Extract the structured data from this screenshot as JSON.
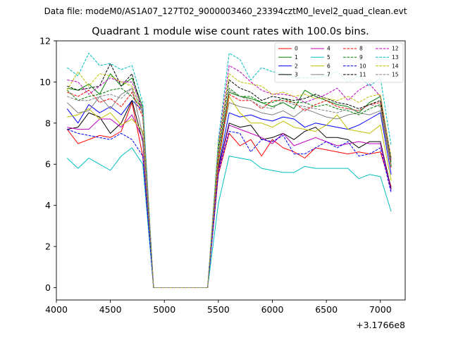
{
  "figure": {
    "suptitle": "Data file: modeM0/AS1A07_127T02_9000003460_23394cztM0_level2_quad_clean.evt"
  },
  "chart_data": {
    "type": "line",
    "title": "Quadrant 1 module wise count rates with 100.0s bins.",
    "xlabel": "",
    "ylabel": "",
    "x_offset": 317660000,
    "x_offset_label": "+3.1766e8",
    "xlim": [
      4000,
      7230
    ],
    "ylim": [
      -0.6,
      12.0
    ],
    "x_ticks": [
      4000,
      4500,
      5000,
      5500,
      6000,
      6500,
      7000
    ],
    "x_tick_labels": [
      "4000",
      "4500",
      "5000",
      "5500",
      "6000",
      "6500",
      "7000"
    ],
    "y_ticks": [
      0,
      2,
      4,
      6,
      8,
      10,
      12
    ],
    "y_tick_labels": [
      "0",
      "2",
      "4",
      "6",
      "8",
      "10",
      "12"
    ],
    "grid": false,
    "legend_position": "top-right",
    "legend_columns": 4,
    "x": [
      4100,
      4200,
      4300,
      4400,
      4500,
      4600,
      4700,
      4800,
      4900,
      5000,
      5100,
      5200,
      5300,
      5400,
      5500,
      5600,
      5700,
      5800,
      5900,
      6000,
      6100,
      6200,
      6300,
      6400,
      6500,
      6600,
      6700,
      6800,
      6900,
      7000,
      7100
    ],
    "series": [
      {
        "name": "0",
        "color": "#ff0000",
        "dash": "solid",
        "values": [
          7.7,
          7.0,
          7.2,
          7.4,
          7.3,
          7.6,
          9.0,
          6.4,
          0,
          0,
          0,
          0,
          0,
          0,
          5.5,
          7.5,
          6.9,
          7.2,
          6.4,
          7.2,
          6.8,
          6.6,
          6.3,
          6.8,
          6.7,
          6.6,
          6.5,
          6.6,
          6.5,
          6.6,
          4.9
        ]
      },
      {
        "name": "1",
        "color": "#008000",
        "dash": "solid",
        "values": [
          9.7,
          9.6,
          9.9,
          9.4,
          10.4,
          9.8,
          10.2,
          8.8,
          0,
          0,
          0,
          0,
          0,
          0,
          6.3,
          9.5,
          9.3,
          9.2,
          9.0,
          8.8,
          9.0,
          8.7,
          9.6,
          9.3,
          9.1,
          8.9,
          8.8,
          8.5,
          9.0,
          9.3,
          6.1
        ]
      },
      {
        "name": "2",
        "color": "#0000ff",
        "dash": "solid",
        "values": [
          8.7,
          8.0,
          8.9,
          8.5,
          8.8,
          8.4,
          9.1,
          8.6,
          0,
          0,
          0,
          0,
          0,
          0,
          5.9,
          8.5,
          8.3,
          8.4,
          8.2,
          8.1,
          8.3,
          8.2,
          7.8,
          8.0,
          7.9,
          7.8,
          7.7,
          7.9,
          8.2,
          8.5,
          5.5
        ]
      },
      {
        "name": "3",
        "color": "#000000",
        "dash": "solid",
        "values": [
          7.7,
          7.8,
          8.5,
          8.3,
          7.5,
          8.0,
          9.1,
          7.1,
          0,
          0,
          0,
          0,
          0,
          0,
          5.8,
          8.0,
          7.8,
          7.9,
          7.2,
          7.3,
          7.5,
          7.2,
          7.6,
          7.8,
          7.3,
          7.3,
          7.2,
          6.8,
          7.1,
          7.1,
          4.8
        ]
      },
      {
        "name": "4",
        "color": "#bf00bf",
        "dash": "solid",
        "values": [
          7.8,
          7.7,
          7.7,
          8.2,
          8.2,
          7.8,
          8.4,
          7.2,
          0,
          0,
          0,
          0,
          0,
          0,
          5.7,
          7.9,
          7.7,
          7.5,
          7.3,
          7.0,
          7.5,
          6.9,
          7.1,
          7.3,
          7.1,
          6.9,
          7.0,
          7.1,
          7.0,
          7.0,
          4.7
        ]
      },
      {
        "name": "5",
        "color": "#00bfbf",
        "dash": "solid",
        "values": [
          6.3,
          5.8,
          6.3,
          6.0,
          5.7,
          6.4,
          6.8,
          6.0,
          0,
          0,
          0,
          0,
          0,
          0,
          4.1,
          6.4,
          6.3,
          6.2,
          5.8,
          5.7,
          5.6,
          5.6,
          5.9,
          5.8,
          5.8,
          5.8,
          5.8,
          5.3,
          5.5,
          5.4,
          3.7
        ]
      },
      {
        "name": "6",
        "color": "#bfbf00",
        "dash": "solid",
        "values": [
          8.3,
          8.4,
          8.7,
          8.2,
          8.5,
          7.9,
          8.2,
          7.6,
          0,
          0,
          0,
          0,
          0,
          0,
          6.0,
          9.3,
          8.5,
          8.0,
          8.0,
          7.8,
          8.1,
          7.8,
          7.7,
          7.6,
          7.9,
          8.4,
          7.7,
          7.6,
          7.5,
          7.9,
          5.2
        ]
      },
      {
        "name": "7",
        "color": "#808080",
        "dash": "solid",
        "values": [
          9.0,
          8.5,
          8.6,
          9.3,
          8.7,
          9.4,
          9.7,
          7.4,
          0,
          0,
          0,
          0,
          0,
          0,
          6.4,
          9.0,
          8.8,
          8.7,
          8.5,
          8.4,
          8.6,
          8.3,
          8.7,
          8.5,
          8.3,
          8.2,
          8.4,
          8.5,
          8.4,
          8.6,
          5.9
        ]
      },
      {
        "name": "8",
        "color": "#ff0000",
        "dash": "dashed",
        "values": [
          9.5,
          9.3,
          9.6,
          9.0,
          9.2,
          8.8,
          9.5,
          8.3,
          0,
          0,
          0,
          0,
          0,
          0,
          6.2,
          9.4,
          9.1,
          9.1,
          8.7,
          9.1,
          9.1,
          9.0,
          8.6,
          8.9,
          9.1,
          8.8,
          8.7,
          8.6,
          8.9,
          9.0,
          5.8
        ]
      },
      {
        "name": "9",
        "color": "#008000",
        "dash": "dashed",
        "values": [
          9.6,
          9.1,
          9.3,
          9.4,
          9.6,
          9.7,
          9.3,
          8.7,
          0,
          0,
          0,
          0,
          0,
          0,
          6.6,
          9.7,
          9.3,
          9.3,
          9.0,
          9.0,
          9.2,
          9.0,
          9.0,
          8.8,
          8.9,
          8.7,
          8.6,
          8.4,
          8.7,
          8.9,
          5.9
        ]
      },
      {
        "name": "10",
        "color": "#0000ff",
        "dash": "dashed",
        "values": [
          7.7,
          7.5,
          7.4,
          7.3,
          7.2,
          7.5,
          7.2,
          6.4,
          0,
          0,
          0,
          0,
          0,
          0,
          5.6,
          7.6,
          7.5,
          6.6,
          7.2,
          7.1,
          7.4,
          6.5,
          6.5,
          6.8,
          7.1,
          6.8,
          7.1,
          6.4,
          6.5,
          6.8,
          4.6
        ]
      },
      {
        "name": "11",
        "color": "#000000",
        "dash": "dashed",
        "values": [
          9.8,
          9.6,
          9.7,
          9.8,
          10.9,
          9.8,
          10.4,
          8.4,
          0,
          0,
          0,
          0,
          0,
          0,
          6.8,
          10.1,
          9.7,
          9.5,
          9.1,
          9.3,
          9.2,
          9.1,
          9.2,
          9.4,
          9.2,
          9.0,
          8.9,
          8.7,
          8.9,
          9.1,
          6.3
        ]
      },
      {
        "name": "12",
        "color": "#bf00bf",
        "dash": "dashed",
        "values": [
          10.1,
          10.0,
          9.4,
          9.8,
          10.2,
          10.0,
          10.0,
          8.7,
          0,
          0,
          0,
          0,
          0,
          0,
          7.1,
          10.8,
          10.5,
          10.0,
          9.6,
          9.4,
          9.4,
          9.3,
          9.0,
          9.2,
          9.4,
          9.7,
          9.1,
          9.6,
          9.9,
          9.3,
          6.2
        ]
      },
      {
        "name": "13",
        "color": "#00bfbf",
        "dash": "dashed",
        "values": [
          10.7,
          10.3,
          11.4,
          10.8,
          10.9,
          10.6,
          10.8,
          9.0,
          0,
          0,
          0,
          0,
          0,
          0,
          7.2,
          11.4,
          11.1,
          10.1,
          10.7,
          10.5,
          10.4,
          10.2,
          10.2,
          10.2,
          10.3,
          10.5,
          10.0,
          10.3,
          9.8,
          10.2,
          6.9
        ]
      },
      {
        "name": "14",
        "color": "#bfbf00",
        "dash": "dashed",
        "values": [
          9.6,
          10.5,
          9.8,
          10.4,
          10.3,
          10.0,
          9.8,
          8.5,
          0,
          0,
          0,
          0,
          0,
          0,
          6.9,
          10.4,
          10.0,
          9.9,
          9.8,
          9.4,
          9.5,
          9.3,
          9.4,
          9.2,
          9.2,
          9.1,
          9.3,
          9.0,
          9.3,
          9.4,
          6.3
        ]
      },
      {
        "name": "15",
        "color": "#808080",
        "dash": "dashed",
        "values": [
          9.3,
          9.1,
          9.1,
          9.3,
          9.4,
          9.2,
          9.7,
          8.5,
          0,
          0,
          0,
          0,
          0,
          0,
          6.5,
          9.6,
          9.3,
          9.1,
          8.8,
          8.7,
          9.1,
          8.9,
          8.8,
          8.7,
          8.6,
          8.5,
          8.7,
          8.6,
          8.9,
          8.8,
          6.0
        ]
      }
    ]
  }
}
